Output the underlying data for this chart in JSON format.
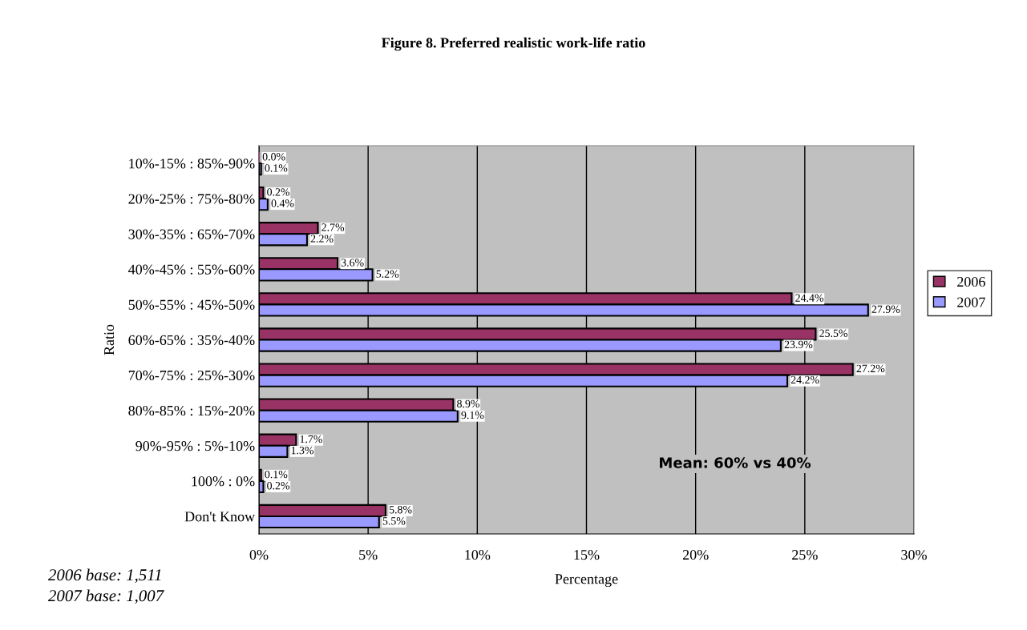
{
  "chart_data": {
    "type": "bar",
    "orientation": "horizontal",
    "title": "Figure 8. Preferred realistic work-life ratio",
    "xlabel": "Percentage",
    "ylabel": "Ratio",
    "categories": [
      "10%-15% : 85%-90%",
      "20%-25% : 75%-80%",
      "30%-35% : 65%-70%",
      "40%-45% : 55%-60%",
      "50%-55% : 45%-50%",
      "60%-65% : 35%-40%",
      "70%-75% : 25%-30%",
      "80%-85% : 15%-20%",
      "90%-95% : 5%-10%",
      "100% : 0%",
      "Don't Know"
    ],
    "series": [
      {
        "name": "2006",
        "color": "#993366",
        "values": [
          0.0,
          0.2,
          2.7,
          3.6,
          24.4,
          25.5,
          27.2,
          8.9,
          1.7,
          0.1,
          5.8
        ],
        "value_labels": [
          "0.0%",
          "0.2%",
          "2.7%",
          "3.6%",
          "24.4%",
          "25.5%",
          "27.2%",
          "8.9%",
          "1.7%",
          "0.1%",
          "5.8%"
        ]
      },
      {
        "name": "2007",
        "color": "#9999ff",
        "values": [
          0.1,
          0.4,
          2.2,
          5.2,
          27.9,
          23.9,
          24.2,
          9.1,
          1.3,
          0.2,
          5.5
        ],
        "value_labels": [
          "0.1%",
          "0.4%",
          "2.2%",
          "5.2%",
          "27.9%",
          "23.9%",
          "24.2%",
          "9.1%",
          "1.3%",
          "0.2%",
          "5.5%"
        ]
      }
    ],
    "xlim": [
      0,
      30
    ],
    "xticks": [
      {
        "value": 0,
        "label": "0%"
      },
      {
        "value": 5,
        "label": "5%"
      },
      {
        "value": 10,
        "label": "10%"
      },
      {
        "value": 15,
        "label": "15%"
      },
      {
        "value": 20,
        "label": "20%"
      },
      {
        "value": 25,
        "label": "25%"
      },
      {
        "value": 30,
        "label": "30%"
      }
    ],
    "grid": "x",
    "legend": "right",
    "annotations": [
      "Mean: 60% vs 40%",
      "2006 base: 1,511",
      "2007 base: 1,007"
    ]
  }
}
